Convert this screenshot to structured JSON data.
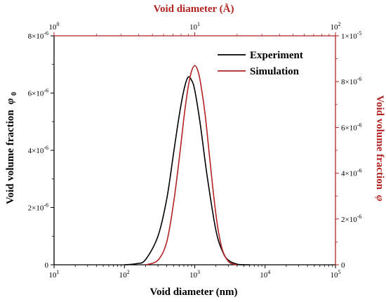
{
  "chart_data": {
    "type": "line",
    "xlabel_bottom": "Void diameter (nm)",
    "xlabel_top": "Void diameter (Å)",
    "ylabel_left": "Void volume fraction",
    "ylabel_left_symbol": "φ",
    "ylabel_left_subscript": "0",
    "ylabel_right": "Void volume fraction",
    "ylabel_right_symbol": "φ",
    "x_scale": "log",
    "xlim_bottom": [
      10,
      100000
    ],
    "xlim_top": [
      1,
      100
    ],
    "ylim_left": [
      0,
      8e-06
    ],
    "ylim_right": [
      0,
      1e-05
    ],
    "bottom_ticks": [
      {
        "base": "10",
        "exp": "1",
        "value": 10
      },
      {
        "base": "10",
        "exp": "2",
        "value": 100
      },
      {
        "base": "10",
        "exp": "3",
        "value": 1000
      },
      {
        "base": "10",
        "exp": "4",
        "value": 10000
      },
      {
        "base": "10",
        "exp": "5",
        "value": 100000
      }
    ],
    "top_ticks": [
      {
        "base": "10",
        "exp": "0",
        "value": 1
      },
      {
        "base": "10",
        "exp": "1",
        "value": 10
      },
      {
        "base": "10",
        "exp": "2",
        "value": 100
      }
    ],
    "left_ticks": [
      {
        "main": "0",
        "exp": "",
        "value": 0
      },
      {
        "main": "2×10",
        "exp": "-6",
        "value": 2e-06
      },
      {
        "main": "4×10",
        "exp": "-6",
        "value": 4e-06
      },
      {
        "main": "6×10",
        "exp": "-6",
        "value": 6e-06
      },
      {
        "main": "8×10",
        "exp": "-6",
        "value": 8e-06
      }
    ],
    "right_ticks": [
      {
        "main": "0",
        "exp": "",
        "value": 0
      },
      {
        "main": "2×10",
        "exp": "-6",
        "value": 2e-06
      },
      {
        "main": "4×10",
        "exp": "-6",
        "value": 4e-06
      },
      {
        "main": "6×10",
        "exp": "-6",
        "value": 6e-06
      },
      {
        "main": "8×10",
        "exp": "-6",
        "value": 8e-06
      },
      {
        "main": "1×10",
        "exp": "-5",
        "value": 1e-05
      }
    ],
    "series": [
      {
        "name": "Experiment",
        "axis": "left",
        "color": "#000000",
        "x": [
          100,
          150,
          200,
          300,
          400,
          500,
          600,
          700,
          800,
          900,
          1000,
          1200,
          1500,
          2000,
          2500,
          3000,
          4000,
          5000,
          6000
        ],
        "y": [
          0,
          4e-08,
          1.8e-07,
          1e-06,
          2.3e-06,
          3.9e-06,
          5.2e-06,
          6.1e-06,
          6.55e-06,
          6.45e-06,
          6.1e-06,
          4.9e-06,
          3.1e-06,
          1.2e-06,
          4.5e-07,
          1.6e-07,
          2e-08,
          2e-09,
          0
        ]
      },
      {
        "name": "Simulation",
        "axis": "right",
        "color": "#b22222",
        "x": [
          200,
          300,
          400,
          500,
          600,
          700,
          800,
          900,
          1000,
          1100,
          1200,
          1400,
          1600,
          1800,
          2000,
          2200,
          2500,
          3000,
          3500,
          4000
        ],
        "y": [
          0,
          2e-07,
          1e-06,
          2.7e-06,
          4.6e-06,
          6.4e-06,
          7.7e-06,
          8.45e-06,
          8.7e-06,
          8.5e-06,
          8e-06,
          6.6e-06,
          4.9e-06,
          3.4e-06,
          2.2e-06,
          1.35e-06,
          6e-07,
          1.5e-07,
          3e-08,
          0
        ]
      }
    ],
    "legend_position": "top-right",
    "grid": false
  },
  "colors": {
    "left_axis": "#000000",
    "right_axis": "#b22222"
  }
}
